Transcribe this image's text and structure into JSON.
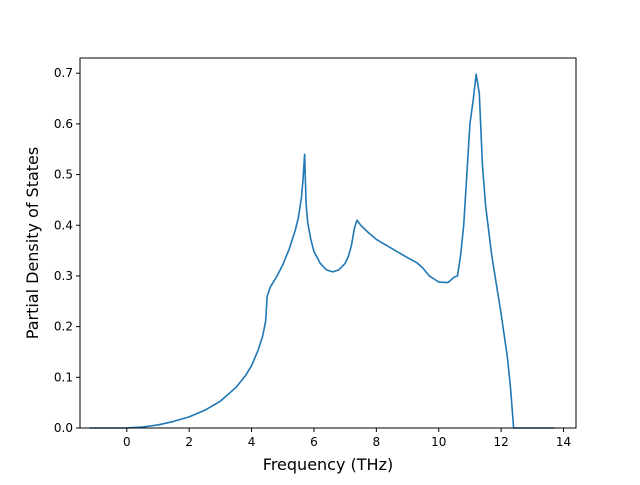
{
  "chart_data": {
    "type": "line",
    "title": "",
    "xlabel": "Frequency (THz)",
    "ylabel": "Partial Density of States",
    "xlim": [
      -1.5,
      14.4
    ],
    "ylim": [
      0.0,
      0.73
    ],
    "xticks": [
      0,
      2,
      4,
      6,
      8,
      10,
      12,
      14
    ],
    "yticks": [
      0.0,
      0.1,
      0.2,
      0.3,
      0.4,
      0.5,
      0.6,
      0.7
    ],
    "xtick_labels": [
      "0",
      "2",
      "4",
      "6",
      "8",
      "10",
      "12",
      "14"
    ],
    "ytick_labels": [
      "0.0",
      "0.1",
      "0.2",
      "0.3",
      "0.4",
      "0.5",
      "0.6",
      "0.7"
    ],
    "grid": false,
    "legend": "none",
    "series": [
      {
        "color": "#1f77b4",
        "x": [
          -1.2,
          -0.5,
          0.0,
          0.5,
          1.0,
          1.5,
          2.0,
          2.5,
          3.0,
          3.5,
          3.8,
          4.0,
          4.2,
          4.35,
          4.45,
          4.5,
          4.6,
          4.8,
          5.0,
          5.2,
          5.4,
          5.5,
          5.6,
          5.65,
          5.7,
          5.75,
          5.8,
          5.9,
          6.0,
          6.2,
          6.4,
          6.6,
          6.8,
          7.0,
          7.1,
          7.2,
          7.3,
          7.38,
          7.5,
          7.7,
          8.0,
          8.5,
          9.0,
          9.3,
          9.5,
          9.7,
          9.9,
          10.0,
          10.3,
          10.5,
          10.6,
          10.7,
          10.8,
          10.9,
          11.0,
          11.1,
          11.2,
          11.3,
          11.4,
          11.5,
          11.7,
          12.0,
          12.2,
          12.3,
          12.4,
          12.5,
          13.0,
          13.7
        ],
        "y": [
          0.0,
          0.0,
          0.0,
          0.002,
          0.006,
          0.013,
          0.022,
          0.035,
          0.053,
          0.08,
          0.103,
          0.123,
          0.152,
          0.18,
          0.21,
          0.26,
          0.278,
          0.298,
          0.322,
          0.352,
          0.39,
          0.415,
          0.455,
          0.49,
          0.54,
          0.44,
          0.405,
          0.372,
          0.348,
          0.325,
          0.312,
          0.308,
          0.312,
          0.325,
          0.338,
          0.36,
          0.395,
          0.41,
          0.4,
          0.388,
          0.372,
          0.354,
          0.336,
          0.326,
          0.315,
          0.3,
          0.292,
          0.288,
          0.287,
          0.298,
          0.3,
          0.34,
          0.4,
          0.5,
          0.6,
          0.645,
          0.698,
          0.66,
          0.52,
          0.44,
          0.34,
          0.225,
          0.14,
          0.08,
          0.0,
          0.0,
          0.0,
          0.0
        ]
      }
    ]
  }
}
